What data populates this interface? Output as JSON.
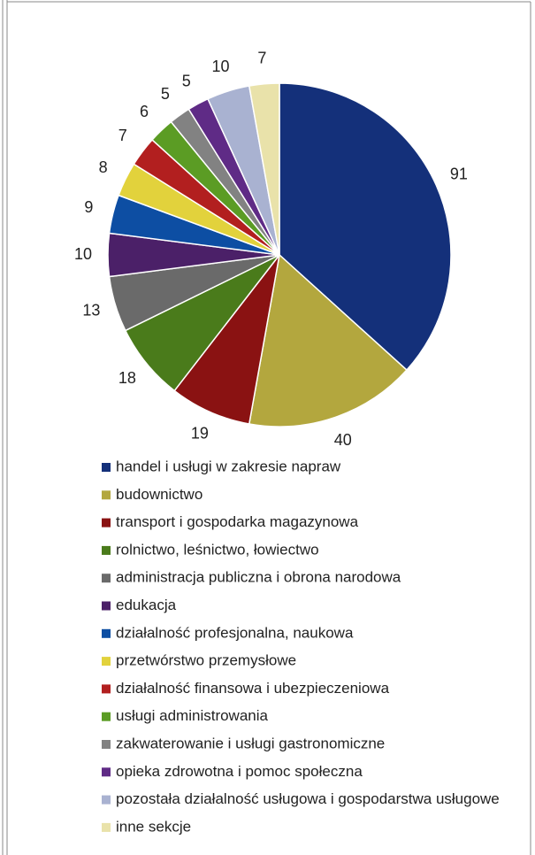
{
  "chart_data": {
    "type": "pie",
    "categories": [
      "handel i usługi w zakresie napraw",
      "budownictwo",
      "transport i gospodarka magazynowa",
      "rolnictwo, leśnictwo, łowiectwo",
      "administracja publiczna i obrona narodowa",
      "edukacja",
      "działalność profesjonalna, naukowa",
      "przetwórstwo przemysłowe",
      "działalność finansowa i ubezpieczeniowa",
      "usługi administrowania",
      "zakwaterowanie i usługi gastronomiczne",
      "opieka zdrowotna i pomoc społeczna",
      "pozostała działalność usługowa i gospodarstwa usługowe",
      "inne sekcje"
    ],
    "values": [
      91,
      40,
      19,
      18,
      13,
      10,
      9,
      8,
      7,
      6,
      5,
      5,
      10,
      7
    ],
    "colors": [
      "#14307a",
      "#b3a73e",
      "#8a1212",
      "#4a7b1b",
      "#6a6a6a",
      "#4b2068",
      "#0d4ea3",
      "#e2d23c",
      "#b21f1f",
      "#5b9c24",
      "#828282",
      "#5f2b86",
      "#a9b2d1",
      "#e9e2aa"
    ],
    "legend": "bottom"
  }
}
